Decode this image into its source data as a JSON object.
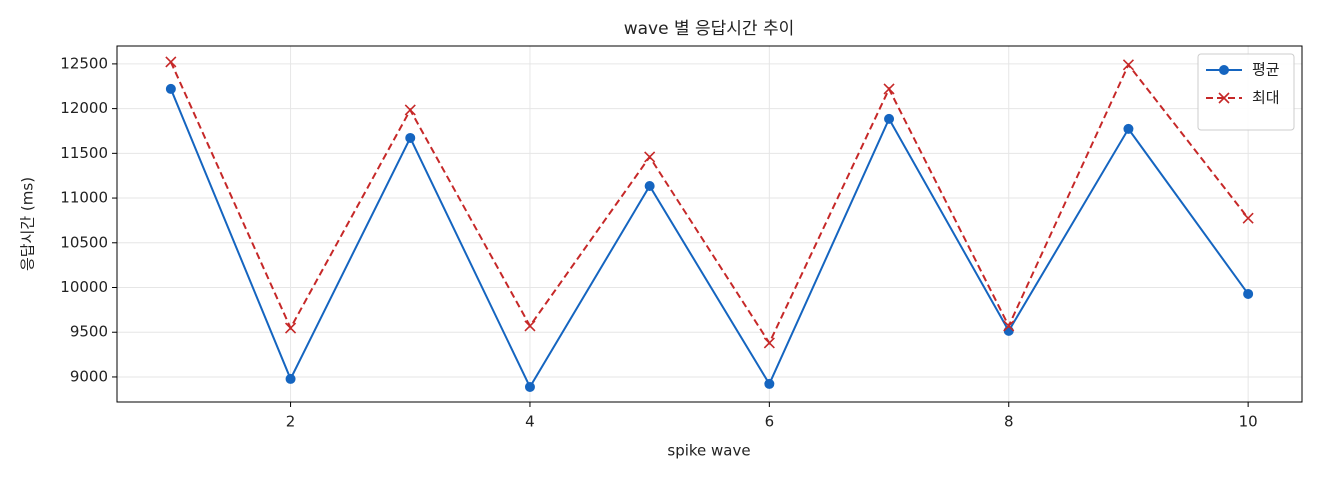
{
  "chart_data": {
    "type": "line",
    "title": "wave 별 응답시간 추이",
    "x_label": "spike wave",
    "y_label": "응답시간 (ms)",
    "x": [
      1,
      2,
      3,
      4,
      5,
      6,
      7,
      8,
      9,
      10
    ],
    "series": [
      {
        "name": "평균",
        "color": "#1565c0",
        "marker": "o",
        "dash": "solid",
        "values": [
          12220,
          8978,
          11672,
          8888,
          11135,
          8922,
          11885,
          9515,
          11773,
          9928
        ]
      },
      {
        "name": "최대",
        "color": "#c62828",
        "marker": "x",
        "dash": "dashed",
        "values": [
          12522,
          9547,
          11985,
          9570,
          11460,
          9380,
          12220,
          9570,
          12490,
          10775
        ]
      }
    ],
    "xlim": [
      0.55,
      10.45
    ],
    "xticks": [
      2,
      4,
      6,
      8,
      10
    ],
    "ylim": [
      8720,
      12700
    ],
    "yticks": [
      9000,
      9500,
      10000,
      10500,
      11000,
      11500,
      12000,
      12500
    ],
    "grid": true,
    "legend": "upper right"
  }
}
